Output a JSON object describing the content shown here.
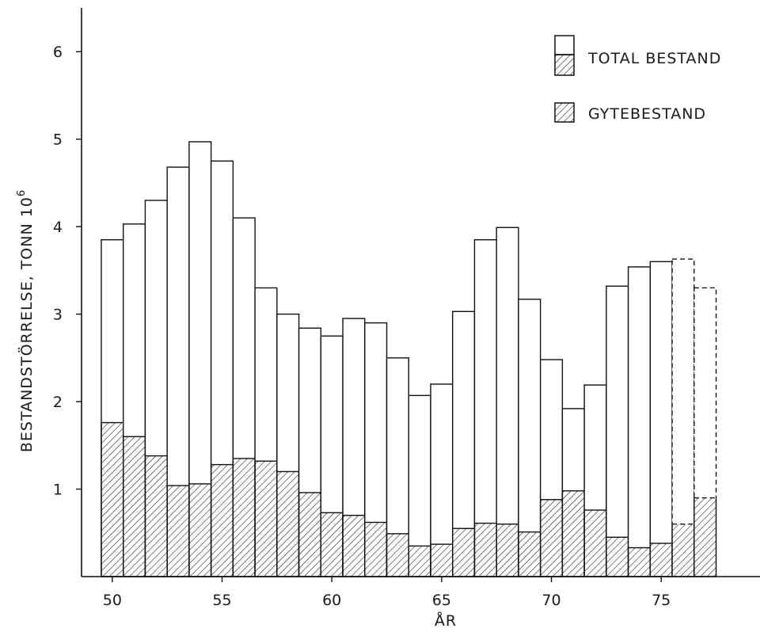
{
  "chart_data": {
    "type": "bar",
    "xlabel": "ÅR",
    "ylabel": "BESTANDSTÖRRELSE, TONN 10",
    "ylabel_superscript": "6",
    "xlim": [
      1948.6,
      1979.5
    ],
    "ylim": [
      0,
      6.5
    ],
    "x_ticks": [
      50,
      55,
      60,
      65,
      70,
      75
    ],
    "y_ticks": [
      1,
      2,
      3,
      4,
      5,
      6
    ],
    "grid": false,
    "legend_position": "top-right",
    "series": [
      {
        "name": "TOTAL BESTAND",
        "style": "open",
        "values": [
          {
            "year": 1950,
            "value": 3.85
          },
          {
            "year": 1951,
            "value": 4.03
          },
          {
            "year": 1952,
            "value": 4.3
          },
          {
            "year": 1953,
            "value": 4.68
          },
          {
            "year": 1954,
            "value": 4.97
          },
          {
            "year": 1955,
            "value": 4.75
          },
          {
            "year": 1956,
            "value": 4.1
          },
          {
            "year": 1957,
            "value": 3.3
          },
          {
            "year": 1958,
            "value": 3.0
          },
          {
            "year": 1959,
            "value": 2.84
          },
          {
            "year": 1960,
            "value": 2.75
          },
          {
            "year": 1961,
            "value": 2.95
          },
          {
            "year": 1962,
            "value": 2.9
          },
          {
            "year": 1963,
            "value": 2.5
          },
          {
            "year": 1964,
            "value": 2.07
          },
          {
            "year": 1965,
            "value": 2.2
          },
          {
            "year": 1966,
            "value": 3.03
          },
          {
            "year": 1967,
            "value": 3.85
          },
          {
            "year": 1968,
            "value": 3.99
          },
          {
            "year": 1969,
            "value": 3.17
          },
          {
            "year": 1970,
            "value": 2.48
          },
          {
            "year": 1971,
            "value": 1.92
          },
          {
            "year": 1972,
            "value": 2.19
          },
          {
            "year": 1973,
            "value": 3.32
          },
          {
            "year": 1974,
            "value": 3.54
          },
          {
            "year": 1975,
            "value": 3.6
          },
          {
            "year": 1976,
            "value": 3.63,
            "projected": true
          },
          {
            "year": 1977,
            "value": 3.3,
            "projected": true
          }
        ]
      },
      {
        "name": "GYTEBESTAND",
        "style": "hatched",
        "values": [
          {
            "year": 1950,
            "value": 1.76
          },
          {
            "year": 1951,
            "value": 1.6
          },
          {
            "year": 1952,
            "value": 1.38
          },
          {
            "year": 1953,
            "value": 1.04
          },
          {
            "year": 1954,
            "value": 1.06
          },
          {
            "year": 1955,
            "value": 1.28
          },
          {
            "year": 1956,
            "value": 1.35
          },
          {
            "year": 1957,
            "value": 1.32
          },
          {
            "year": 1958,
            "value": 1.2
          },
          {
            "year": 1959,
            "value": 0.96
          },
          {
            "year": 1960,
            "value": 0.73
          },
          {
            "year": 1961,
            "value": 0.7
          },
          {
            "year": 1962,
            "value": 0.62
          },
          {
            "year": 1963,
            "value": 0.49
          },
          {
            "year": 1964,
            "value": 0.35
          },
          {
            "year": 1965,
            "value": 0.37
          },
          {
            "year": 1966,
            "value": 0.55
          },
          {
            "year": 1967,
            "value": 0.61
          },
          {
            "year": 1968,
            "value": 0.6
          },
          {
            "year": 1969,
            "value": 0.51
          },
          {
            "year": 1970,
            "value": 0.88
          },
          {
            "year": 1971,
            "value": 0.98
          },
          {
            "year": 1972,
            "value": 0.76
          },
          {
            "year": 1973,
            "value": 0.45
          },
          {
            "year": 1974,
            "value": 0.33
          },
          {
            "year": 1975,
            "value": 0.38
          },
          {
            "year": 1976,
            "value": 0.6,
            "projected": true
          },
          {
            "year": 1977,
            "value": 0.9,
            "projected": true
          }
        ]
      }
    ]
  }
}
